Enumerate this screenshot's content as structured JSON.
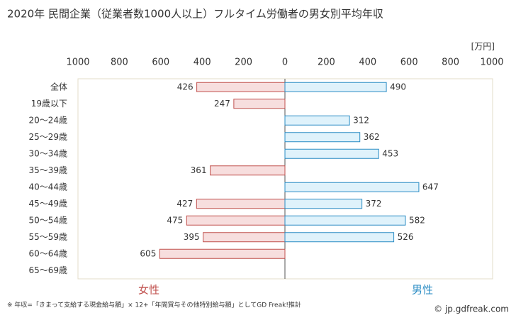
{
  "chart_data": {
    "type": "butterfly",
    "title": "2020年 民間企業（従業者数1000人以上）フルタイム労働者の男女別平均年収",
    "unit": "[万円]",
    "categories": [
      "全体",
      "19歳以下",
      "20～24歳",
      "25～29歳",
      "30～34歳",
      "35～39歳",
      "40～44歳",
      "45～49歳",
      "50～54歳",
      "55～59歳",
      "60～64歳",
      "65～69歳"
    ],
    "series": [
      {
        "name": "女性",
        "side": "left",
        "color": "#c0504d",
        "fill": "#f7dede",
        "values": [
          426,
          247,
          null,
          null,
          null,
          361,
          null,
          427,
          475,
          395,
          605,
          null
        ]
      },
      {
        "name": "男性",
        "side": "right",
        "color": "#2a8cc4",
        "fill": "#dff2fb",
        "values": [
          490,
          null,
          312,
          362,
          453,
          null,
          647,
          372,
          582,
          526,
          null,
          null
        ]
      }
    ],
    "xlim": [
      0,
      1000
    ],
    "xticks": [
      0,
      200,
      400,
      600,
      800,
      1000
    ],
    "footnote": "※ 年収=「きまって支給する現金給与額」× 12+「年間賞与その他特別給与額」としてGD Freak!推計",
    "source": "© jp.gdfreak.com"
  }
}
